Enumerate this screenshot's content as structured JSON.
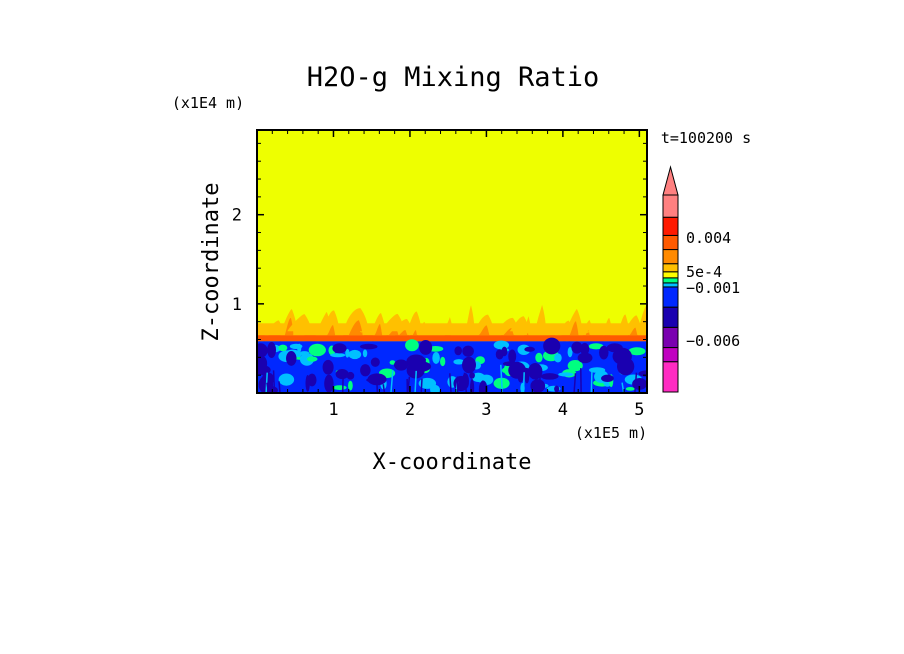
{
  "chart_data": {
    "type": "heatmap",
    "title": "H2O-g Mixing Ratio",
    "xlabel": "X-coordinate",
    "ylabel": "Z-coordinate",
    "x_scale_label": "(x1E5 m)",
    "y_scale_label": "(x1E4 m)",
    "time_label": "t=100200 s",
    "xlim": [
      0,
      5.1
    ],
    "ylim": [
      0,
      2.95
    ],
    "x_ticks": [
      {
        "value": 1,
        "label": "1"
      },
      {
        "value": 2,
        "label": "2"
      },
      {
        "value": 3,
        "label": "3"
      },
      {
        "value": 4,
        "label": "4"
      },
      {
        "value": 5,
        "label": "5"
      }
    ],
    "y_ticks": [
      {
        "value": 1,
        "label": "1"
      },
      {
        "value": 2,
        "label": "2"
      }
    ],
    "layers": {
      "background_value_range": "near 0 (yellow)",
      "boundary_layer_top": 0.58,
      "plume_top": 1.0
    },
    "colorbar": {
      "levels": [
        {
          "color": "#ff2bc2"
        },
        {
          "color": "#c000c0"
        },
        {
          "color": "#7a00b0"
        },
        {
          "color": "#1a00b0"
        },
        {
          "color": "#0028ff"
        },
        {
          "color": "#00c0ff"
        },
        {
          "color": "#00ff80"
        },
        {
          "color": "#ffff00"
        },
        {
          "color": "#ffc000"
        },
        {
          "color": "#ff8a00"
        },
        {
          "color": "#ff5a00"
        },
        {
          "color": "#ff1a00"
        },
        {
          "color": "#ff8080"
        }
      ],
      "labels": [
        {
          "text": "0.004",
          "value": 0.004
        },
        {
          "text": "5e-4",
          "value": 0.0005
        },
        {
          "text": "−0.001",
          "value": -0.001
        },
        {
          "text": "−0.006",
          "value": -0.006
        }
      ]
    },
    "colors": {
      "background": "#eeff00",
      "orange_light": "#ffc000",
      "orange": "#ff8a00",
      "orange_dark": "#ff5a00",
      "blue": "#0028ff",
      "blue_dark": "#1a00b0",
      "cyan": "#00c0ff",
      "green": "#00ff80"
    }
  }
}
